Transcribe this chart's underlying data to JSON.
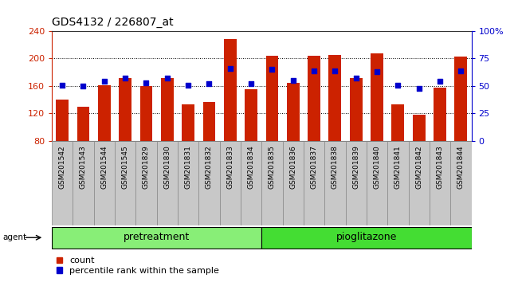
{
  "title": "GDS4132 / 226807_at",
  "samples": [
    "GSM201542",
    "GSM201543",
    "GSM201544",
    "GSM201545",
    "GSM201829",
    "GSM201830",
    "GSM201831",
    "GSM201832",
    "GSM201833",
    "GSM201834",
    "GSM201835",
    "GSM201836",
    "GSM201837",
    "GSM201838",
    "GSM201839",
    "GSM201840",
    "GSM201841",
    "GSM201842",
    "GSM201843",
    "GSM201844"
  ],
  "counts": [
    140,
    130,
    161,
    172,
    160,
    172,
    133,
    137,
    228,
    155,
    204,
    165,
    204,
    205,
    172,
    207,
    133,
    118,
    158,
    203
  ],
  "percentile_ranks": [
    51,
    50,
    54,
    57,
    53,
    57,
    51,
    52,
    66,
    52,
    65,
    55,
    64,
    64,
    57,
    63,
    51,
    48,
    54,
    64
  ],
  "groups": {
    "pretreatment": [
      0,
      9
    ],
    "pioglitazone": [
      10,
      19
    ]
  },
  "ylim_left": [
    80,
    240
  ],
  "ylim_right": [
    0,
    100
  ],
  "yticks_left": [
    80,
    120,
    160,
    200,
    240
  ],
  "yticks_right": [
    0,
    25,
    50,
    75,
    100
  ],
  "yticklabels_right": [
    "0",
    "25",
    "50",
    "75",
    "100%"
  ],
  "bar_color": "#cc2200",
  "dot_color": "#0000cc",
  "pretreatment_color": "#88ee77",
  "pioglitazone_color": "#44dd33",
  "cell_bg_color": "#c8c8c8",
  "cell_border_color": "#888888",
  "plot_bg": "#ffffff",
  "grid_color": "#000000",
  "ylabel_left_color": "#cc2200",
  "ylabel_right_color": "#0000cc",
  "title_fontsize": 10,
  "tick_fontsize": 6.5,
  "legend_fontsize": 8,
  "group_label_fontsize": 9
}
